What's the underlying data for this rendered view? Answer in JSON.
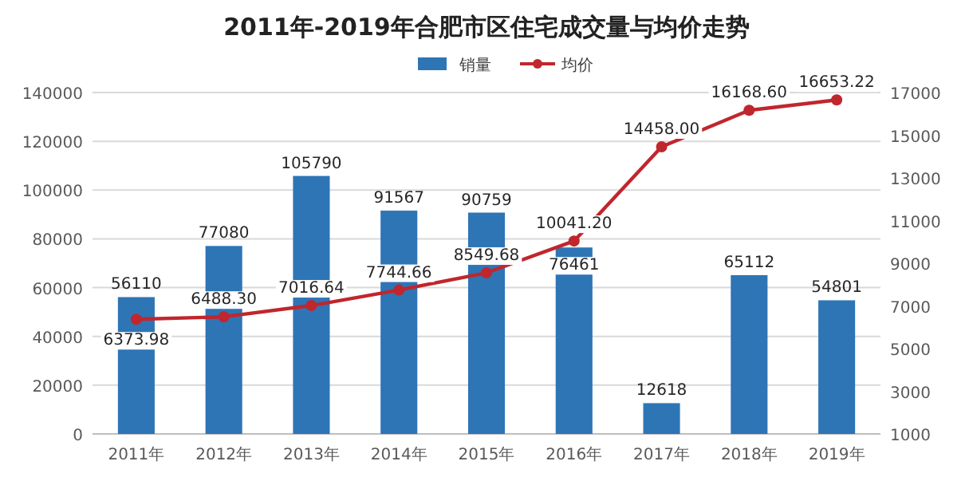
{
  "chart_data": {
    "type": "bar",
    "title": "2011年-2019年合肥市区住宅成交量与均价走势",
    "categories": [
      "2011年",
      "2012年",
      "2013年",
      "2014年",
      "2015年",
      "2016年",
      "2017年",
      "2018年",
      "2019年"
    ],
    "series": [
      {
        "name": "销量",
        "type": "bar",
        "color": "#2e75b6",
        "values": [
          56110,
          77080,
          105790,
          91567,
          90759,
          76461,
          12618,
          65112,
          54801
        ]
      },
      {
        "name": "均价",
        "type": "line",
        "axis": "y2",
        "color": "#c0262d",
        "values": [
          6373.98,
          6488.3,
          7016.64,
          7744.66,
          8549.68,
          10041.2,
          14458.0,
          16168.6,
          16653.22
        ],
        "value_labels": [
          "6373.98",
          "6488.30",
          "7016.64",
          "7744.66",
          "8549.68",
          "10041.20",
          "14458.00",
          "16168.60",
          "16653.22"
        ]
      }
    ],
    "ylim": [
      0,
      140000
    ],
    "yticks": [
      0,
      20000,
      40000,
      60000,
      80000,
      100000,
      120000,
      140000
    ],
    "y2lim": [
      1000,
      17000
    ],
    "y2ticks": [
      1000,
      3000,
      5000,
      7000,
      9000,
      11000,
      13000,
      15000,
      17000
    ],
    "data_labels": true,
    "grid": "y",
    "legend": "top",
    "marker": "circle"
  }
}
